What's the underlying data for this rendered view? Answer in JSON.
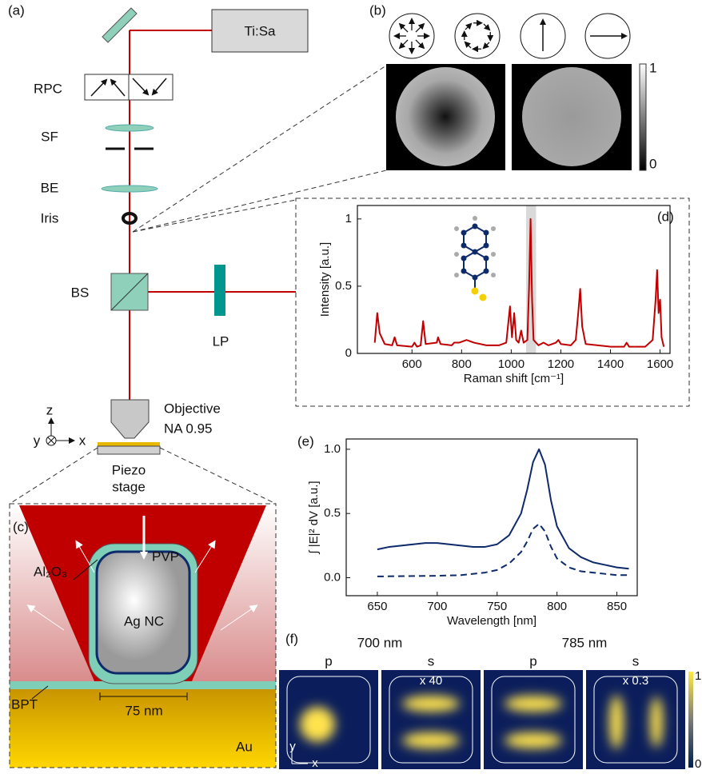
{
  "labels": {
    "panel_a": "(a)",
    "panel_b": "(b)",
    "panel_c": "(c)",
    "panel_d": "(d)",
    "panel_e": "(e)",
    "panel_f": "(f)",
    "laser": "Ti:Sa",
    "rpc": "RPC",
    "sf": "SF",
    "be": "BE",
    "iris": "Iris",
    "bs": "BS",
    "lp": "LP",
    "objective": "Objective",
    "na": "NA 0.95",
    "axis_z": "z",
    "axis_y": "y",
    "axis_x": "x",
    "piezo": "Piezo",
    "stage": "stage",
    "alox": "Al₂O₃",
    "pvp": "PVP",
    "agnc": "Ag NC",
    "bpt": "BPT",
    "scale": "75 nm",
    "au": "Au",
    "b_cbar_max": 1,
    "b_cbar_min": 0,
    "f_wl1": "700 nm",
    "f_wl2": "785 nm",
    "f_p1": "p",
    "f_s1": "s",
    "f_p2": "p",
    "f_s2": "s",
    "f_x40": "x 40",
    "f_x03": "x 0.3",
    "f_axis_y": "y",
    "f_axis_x": "x",
    "f_cbar_max": 1,
    "f_cbar_min": 0
  },
  "chart_data": [
    {
      "type": "line",
      "xlabel": "Raman shift [cm⁻¹]",
      "ylabel": "Intensity [a.u.]",
      "xlim": [
        380,
        1640
      ],
      "ylim": [
        0,
        1.1
      ],
      "xticks": [
        600,
        800,
        1000,
        1200,
        1400,
        1600
      ],
      "yticks": [
        0,
        0.5,
        1
      ],
      "highlight": [
        1060,
        1100
      ],
      "highlight_color": "#d9d9d9",
      "series": [
        {
          "color": "#c00000",
          "x": [
            450,
            460,
            470,
            490,
            520,
            530,
            540,
            600,
            610,
            620,
            635,
            645,
            655,
            700,
            705,
            715,
            760,
            770,
            790,
            820,
            850,
            900,
            950,
            980,
            995,
            1003,
            1012,
            1020,
            1030,
            1040,
            1050,
            1065,
            1072,
            1078,
            1084,
            1090,
            1110,
            1130,
            1150,
            1180,
            1190,
            1200,
            1240,
            1260,
            1270,
            1278,
            1286,
            1300,
            1400,
            1455,
            1465,
            1475,
            1540,
            1570,
            1582,
            1588,
            1594,
            1600,
            1606,
            1615
          ],
          "values": [
            0.08,
            0.3,
            0.15,
            0.07,
            0.06,
            0.12,
            0.06,
            0.05,
            0.08,
            0.05,
            0.06,
            0.24,
            0.07,
            0.08,
            0.12,
            0.07,
            0.06,
            0.08,
            0.08,
            0.1,
            0.08,
            0.06,
            0.06,
            0.08,
            0.35,
            0.12,
            0.3,
            0.1,
            0.08,
            0.17,
            0.08,
            0.1,
            0.5,
            1.0,
            0.4,
            0.1,
            0.06,
            0.08,
            0.06,
            0.08,
            0.1,
            0.07,
            0.06,
            0.1,
            0.3,
            0.48,
            0.2,
            0.07,
            0.05,
            0.05,
            0.08,
            0.05,
            0.05,
            0.1,
            0.4,
            0.62,
            0.3,
            0.4,
            0.12,
            0.05
          ]
        }
      ]
    },
    {
      "type": "line",
      "xlabel": "Wavelength [nm]",
      "ylabel": "∫ |E|² dV  [a.u.]",
      "xlim": [
        624,
        867
      ],
      "ylim": [
        -0.14,
        1.08
      ],
      "xticks": [
        650,
        700,
        750,
        800,
        850
      ],
      "yticks": [
        {
          "value": 0,
          "label": "0.0"
        },
        {
          "value": 0.5,
          "label": "0.5"
        },
        {
          "value": 1,
          "label": "1.0"
        }
      ],
      "series": [
        {
          "color": "#0d2a6b",
          "dashed": false,
          "x": [
            650,
            660,
            670,
            680,
            690,
            700,
            710,
            720,
            730,
            740,
            750,
            760,
            770,
            775,
            780,
            785,
            790,
            795,
            800,
            810,
            820,
            830,
            840,
            850,
            860
          ],
          "values": [
            0.22,
            0.24,
            0.25,
            0.26,
            0.27,
            0.27,
            0.26,
            0.25,
            0.24,
            0.24,
            0.26,
            0.33,
            0.5,
            0.68,
            0.9,
            1.0,
            0.88,
            0.6,
            0.4,
            0.23,
            0.16,
            0.12,
            0.1,
            0.08,
            0.07
          ]
        },
        {
          "color": "#0d2a6b",
          "dashed": true,
          "x": [
            650,
            700,
            720,
            740,
            750,
            760,
            770,
            775,
            780,
            785,
            790,
            795,
            800,
            810,
            820,
            830,
            840,
            850,
            860
          ],
          "values": [
            0.01,
            0.015,
            0.02,
            0.04,
            0.06,
            0.11,
            0.2,
            0.28,
            0.38,
            0.42,
            0.36,
            0.24,
            0.15,
            0.08,
            0.05,
            0.04,
            0.03,
            0.02,
            0.02
          ]
        }
      ]
    }
  ]
}
